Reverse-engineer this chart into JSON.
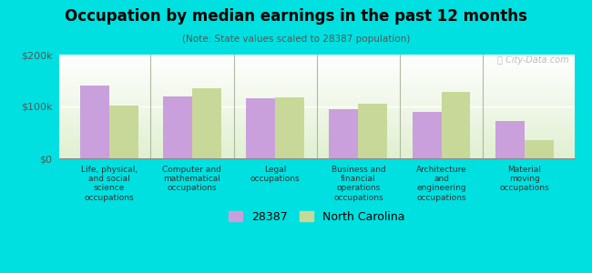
{
  "title": "Occupation by median earnings in the past 12 months",
  "subtitle": "(Note: State values scaled to 28387 population)",
  "categories": [
    "Life, physical,\nand social\nscience\noccupations",
    "Computer and\nmathematical\noccupations",
    "Legal\noccupations",
    "Business and\nfinancial\noperations\noccupations",
    "Architecture\nand\nengineering\noccupations",
    "Material\nmoving\noccupations"
  ],
  "values_28387": [
    140000,
    120000,
    115000,
    95000,
    90000,
    72000
  ],
  "values_nc": [
    102000,
    135000,
    118000,
    105000,
    128000,
    35000
  ],
  "color_28387": "#c9a0dc",
  "color_nc": "#c8d898",
  "ylim": [
    0,
    200000
  ],
  "yticks": [
    0,
    100000,
    200000
  ],
  "ytick_labels": [
    "$0",
    "$100k",
    "$200k"
  ],
  "legend_labels": [
    "28387",
    "North Carolina"
  ],
  "background_color": "#00e0e0",
  "watermark": "ⓘ City-Data.com",
  "bar_width": 0.35,
  "grid_color": "#ffffff",
  "separator_color": "#b0b8a0"
}
